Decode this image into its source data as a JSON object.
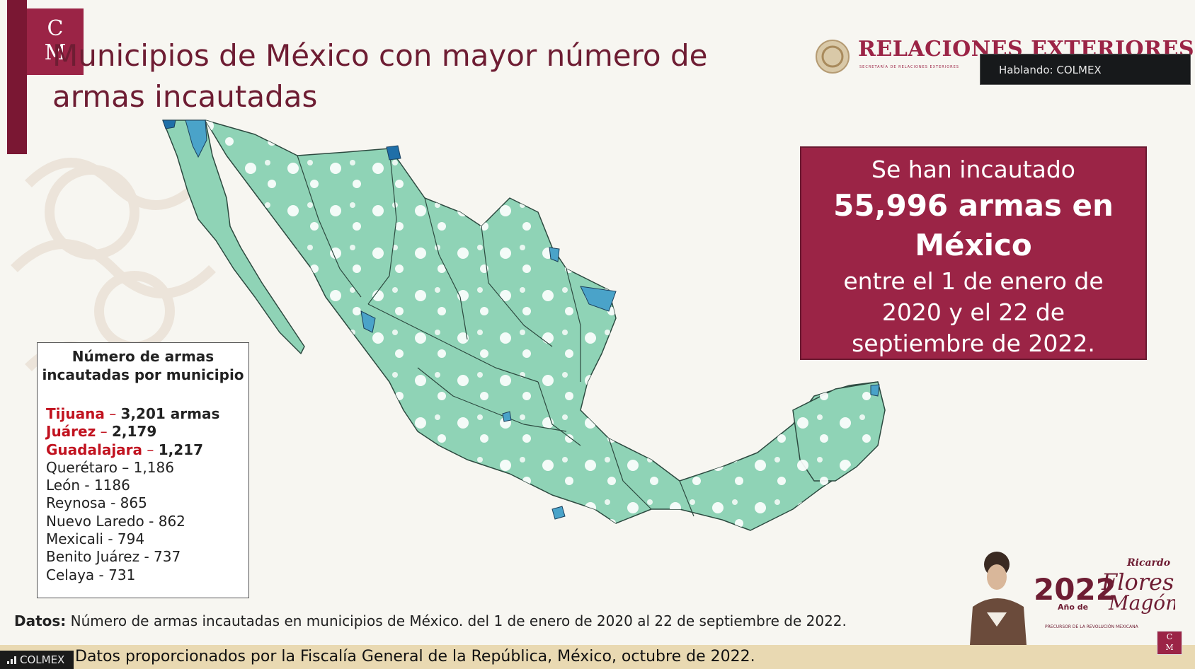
{
  "slide": {
    "logo_letters_top": "C",
    "logo_letters_bottom": "M",
    "title": "Municipios de México con mayor número de armas incautadas",
    "ministry": {
      "name": "RELACIONES EXTERIORES",
      "subtitle": "SECRETARÍA DE RELACIONES EXTERIORES"
    },
    "stat": {
      "line1": "Se han incautado",
      "big_line1": "55,996 armas en",
      "big_line2": "México",
      "line_a": "entre el 1 de enero de",
      "line_b": "2020 y el 22 de",
      "line_c": "septiembre de 2022."
    },
    "legend": {
      "title": "Número de armas incautadas por municipio",
      "items": [
        {
          "name": "Tijuana",
          "value": "3,201 armas",
          "highlight": true
        },
        {
          "name": "Juárez",
          "value": "2,179",
          "highlight": true
        },
        {
          "name": "Guadalajara",
          "value": "1,217",
          "highlight": true
        },
        {
          "name": "Querétaro",
          "value": "1,186",
          "highlight": false
        },
        {
          "name": "León",
          "value": "1186",
          "highlight": false
        },
        {
          "name": "Reynosa",
          "value": "865",
          "highlight": false
        },
        {
          "name": "Nuevo Laredo",
          "value": "862",
          "highlight": false
        },
        {
          "name": "Mexicali",
          "value": "794",
          "highlight": false
        },
        {
          "name": "Benito Juárez",
          "value": "737",
          "highlight": false
        },
        {
          "name": "Celaya",
          "value": "731",
          "highlight": false
        }
      ]
    },
    "source_label": "Datos:",
    "source_text": "Número de armas incautadas en municipios de México. del 1 de enero de 2020 al 22 de septiembre de 2022.",
    "footer_text": "Datos proporcionados por la Fiscalía General de la República, México, octubre de 2022.",
    "banner": {
      "year": "2022",
      "year_sub": "Año de",
      "name_line1": "Ricardo",
      "name_line2": "Flores",
      "name_line3": "Magón",
      "caption": "PRECURSOR DE LA REVOLUCIÓN MEXICANA"
    }
  },
  "overlay": {
    "speaking_label": "Hablando: COLMEX",
    "badge_label": "COLMEX"
  },
  "colors": {
    "brand": "#9b2446",
    "map_fill": "#8fd3b6",
    "map_high": "#4aa3c9",
    "map_highest": "#1f6fa8"
  }
}
